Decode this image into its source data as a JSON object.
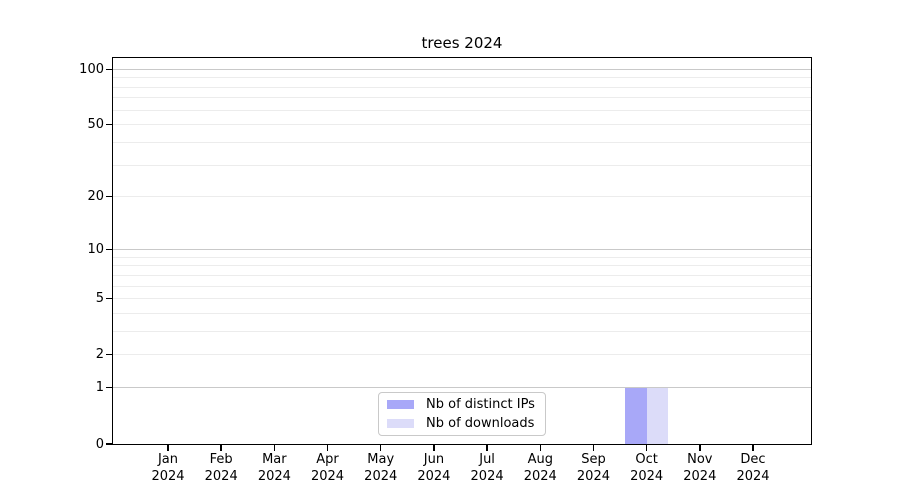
{
  "title": "trees 2024",
  "colors": {
    "distinct_ips": "#a8a8f8",
    "downloads": "#dcdcf9",
    "grid_major": "#c9c9c9",
    "grid_minor": "#ececec",
    "axis": "#000000",
    "legend_border": "#c9c9c9"
  },
  "legend": {
    "items": [
      {
        "label": "Nb of distinct IPs",
        "color_key": "distinct_ips"
      },
      {
        "label": "Nb of downloads",
        "color_key": "downloads"
      }
    ]
  },
  "chart_data": {
    "type": "bar",
    "title": "trees 2024",
    "categories": [
      "Jan 2024",
      "Feb 2024",
      "Mar 2024",
      "Apr 2024",
      "May 2024",
      "Jun 2024",
      "Jul 2024",
      "Aug 2024",
      "Sep 2024",
      "Oct 2024",
      "Nov 2024",
      "Dec 2024"
    ],
    "series": [
      {
        "name": "Nb of distinct IPs",
        "color_key": "distinct_ips",
        "values": [
          0,
          0,
          0,
          0,
          0,
          0,
          0,
          0,
          0,
          1,
          0,
          0
        ]
      },
      {
        "name": "Nb of downloads",
        "color_key": "downloads",
        "values": [
          0,
          0,
          0,
          0,
          0,
          0,
          0,
          0,
          0,
          1,
          0,
          0
        ]
      }
    ],
    "xlabel": "",
    "ylabel": "",
    "y_scale": "log1p",
    "ylim": [
      0,
      115
    ],
    "y_tick_labels": [
      "0",
      "1",
      "2",
      "5",
      "10",
      "20",
      "50",
      "100"
    ],
    "y_tick_values": [
      0,
      1,
      2,
      5,
      10,
      20,
      50,
      100
    ],
    "y_major_gridlines": [
      1,
      10,
      100
    ],
    "y_minor_gridlines": [
      2,
      3,
      4,
      5,
      6,
      7,
      8,
      9,
      20,
      30,
      40,
      50,
      60,
      70,
      80,
      90
    ],
    "grid": true,
    "legend_position": "bottom-center"
  }
}
